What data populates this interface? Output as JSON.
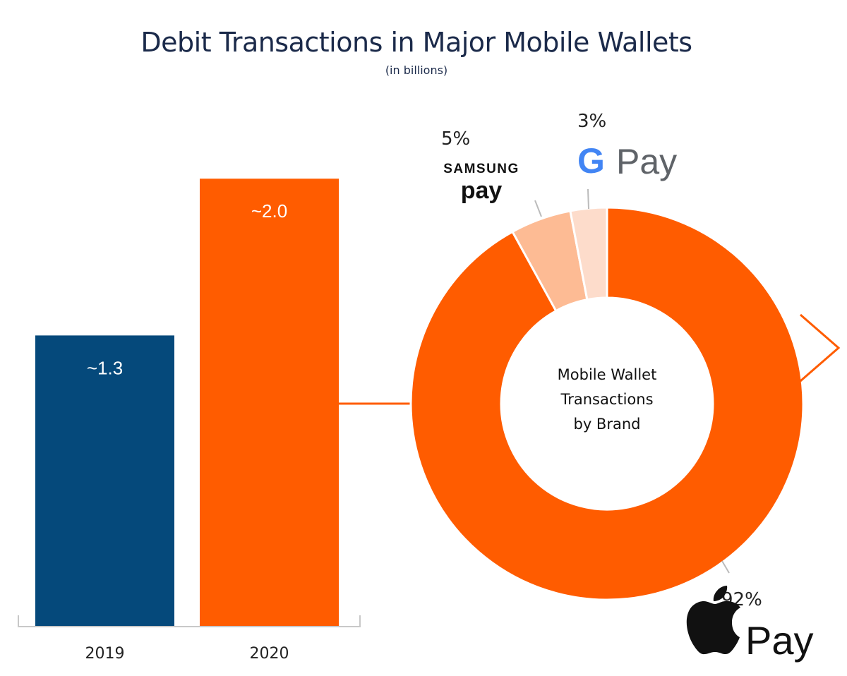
{
  "title": "Debit Transactions in Major Mobile Wallets",
  "subtitle": "(in billions)",
  "colors": {
    "bar2019": "#05497b",
    "bar2020": "#ff5c00",
    "apple": "#ff5c00",
    "samsung": "#fdbb94",
    "google": "#fddccb",
    "connector": "#ff5c00"
  },
  "chart_data": [
    {
      "type": "bar",
      "title": "",
      "categories": [
        "2019",
        "2020"
      ],
      "values": [
        1.3,
        2.0
      ],
      "data_labels": [
        "~1.3",
        "~2.0"
      ],
      "ylim": [
        0,
        2.3
      ],
      "xlabel": "",
      "ylabel": ""
    },
    {
      "type": "pie",
      "variant": "donut",
      "center_label": [
        "Mobile Wallet",
        "Transactions",
        "by Brand"
      ],
      "slices": [
        {
          "name": "Apple Pay",
          "value": 92,
          "label": "92%"
        },
        {
          "name": "Samsung Pay",
          "value": 5,
          "label": "5%"
        },
        {
          "name": "Google Pay",
          "value": 3,
          "label": "3%"
        }
      ]
    }
  ],
  "brands": {
    "samsung_top": "SAMSUNG",
    "samsung_bottom": "pay",
    "google_letter": "G",
    "google_word": "Pay",
    "apple_word": "Pay",
    "apple_logo": "apple-logo"
  }
}
